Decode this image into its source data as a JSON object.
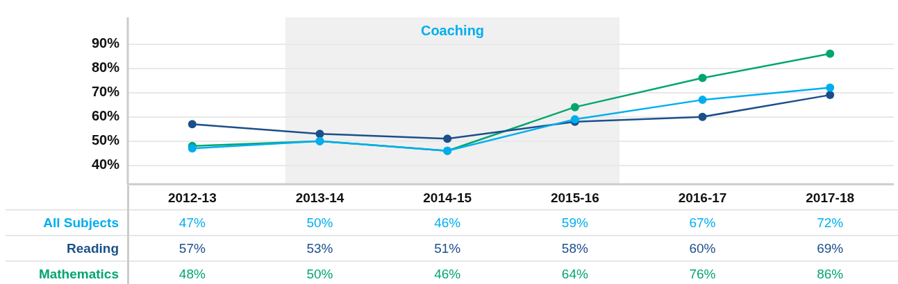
{
  "chart_data": {
    "type": "line",
    "categories": [
      "2012-13",
      "2013-14",
      "2014-15",
      "2015-16",
      "2016-17",
      "2017-18"
    ],
    "series": [
      {
        "name": "All Subjects",
        "color": "#00aeef",
        "values": [
          47,
          50,
          46,
          59,
          67,
          72
        ],
        "value_labels": [
          "47%",
          "50%",
          "46%",
          "59%",
          "67%",
          "72%"
        ]
      },
      {
        "name": "Reading",
        "color": "#1b4f8a",
        "values": [
          57,
          53,
          51,
          58,
          60,
          69
        ],
        "value_labels": [
          "57%",
          "53%",
          "51%",
          "58%",
          "60%",
          "69%"
        ]
      },
      {
        "name": "Mathematics",
        "color": "#00a66e",
        "values": [
          48,
          50,
          46,
          64,
          76,
          86
        ],
        "value_labels": [
          "48%",
          "50%",
          "46%",
          "64%",
          "76%",
          "86%"
        ]
      }
    ],
    "ylim": [
      32.5,
      101
    ],
    "yticks": [
      {
        "value": 40,
        "label": "40%"
      },
      {
        "value": 50,
        "label": "50%"
      },
      {
        "value": 60,
        "label": "60%"
      },
      {
        "value": 70,
        "label": "70%"
      },
      {
        "value": 80,
        "label": "80%"
      },
      {
        "value": 90,
        "label": "90%"
      }
    ],
    "grid": "y",
    "marker": "circle",
    "line_style": "solid",
    "bands": [
      {
        "axis": "x",
        "from": "2013-14",
        "to": "2015-16",
        "label": "Coaching",
        "color": "#f0f0f0"
      }
    ]
  }
}
